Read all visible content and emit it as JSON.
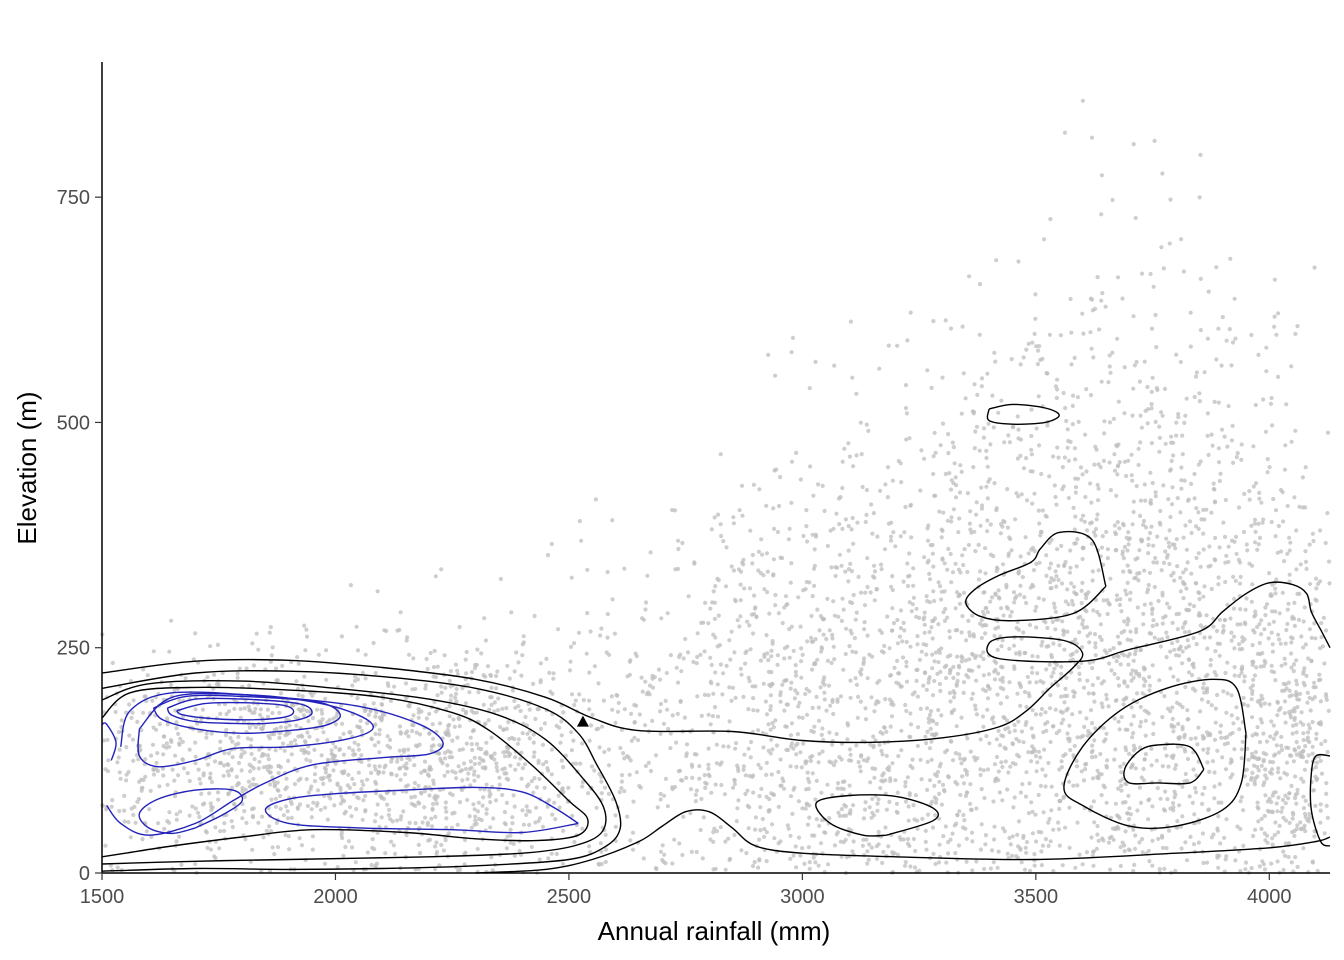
{
  "chart_data": {
    "type": "scatter",
    "title": "",
    "xlabel": "Annual rainfall (mm)",
    "ylabel": "Elevation (m)",
    "xlim": [
      1500,
      4130
    ],
    "ylim": [
      0,
      900
    ],
    "grid": false,
    "legend": "none",
    "x_ticks": [
      1500,
      2000,
      2500,
      3000,
      3500,
      4000
    ],
    "y_ticks": [
      0,
      250,
      500,
      750
    ],
    "x_tick_labels": [
      "1500",
      "2000",
      "2500",
      "3000",
      "3500",
      "4000"
    ],
    "y_tick_labels": [
      "0",
      "250",
      "500",
      "750"
    ],
    "colors": {
      "points": "#bdbdbd",
      "contour_outer": "#000000",
      "contour_inner": "#2222bb",
      "marker": "#000000",
      "axis": "#000000"
    },
    "series": [
      {
        "kind": "points",
        "description_point_clusters": [
          {
            "cx": 1850,
            "cy": 130,
            "sx": 320,
            "sy": 60,
            "n": 1200,
            "ymax": 300
          },
          {
            "cx": 2300,
            "cy": 120,
            "sx": 180,
            "sy": 80,
            "n": 500,
            "ymax": 620
          },
          {
            "cx": 2900,
            "cy": 180,
            "sx": 180,
            "sy": 120,
            "n": 550,
            "ymax": 430
          },
          {
            "cx": 3200,
            "cy": 200,
            "sx": 200,
            "sy": 160,
            "n": 750,
            "ymax": 700
          },
          {
            "cx": 3500,
            "cy": 260,
            "sx": 170,
            "sy": 170,
            "n": 900,
            "ymax": 750
          },
          {
            "cx": 3800,
            "cy": 250,
            "sx": 160,
            "sy": 200,
            "n": 1000,
            "ymax": 900
          },
          {
            "cx": 4050,
            "cy": 160,
            "sx": 70,
            "sy": 110,
            "n": 450,
            "ymax": 520
          }
        ]
      },
      {
        "kind": "marker",
        "shape": "triangle",
        "x": 2530,
        "y": 168
      }
    ],
    "contours": [
      {
        "level": 1,
        "color": "outer",
        "points": [
          [
            1500,
            222
          ],
          [
            1700,
            235
          ],
          [
            1900,
            236
          ],
          [
            2100,
            228
          ],
          [
            2300,
            215
          ],
          [
            2450,
            195
          ],
          [
            2550,
            172
          ],
          [
            2650,
            158
          ],
          [
            2850,
            157
          ],
          [
            3000,
            147
          ],
          [
            3150,
            145
          ],
          [
            3300,
            150
          ],
          [
            3420,
            162
          ],
          [
            3480,
            180
          ],
          [
            3530,
            205
          ],
          [
            3580,
            228
          ],
          [
            3600,
            244
          ],
          [
            3560,
            258
          ],
          [
            3450,
            262
          ],
          [
            3400,
            255
          ],
          [
            3420,
            238
          ],
          [
            3600,
            235
          ],
          [
            3700,
            248
          ],
          [
            3850,
            268
          ],
          [
            3900,
            290
          ],
          [
            3950,
            310
          ],
          [
            4000,
            322
          ],
          [
            4050,
            320
          ],
          [
            4080,
            310
          ],
          [
            4090,
            290
          ],
          [
            4110,
            270
          ],
          [
            4130,
            250
          ]
        ]
      },
      {
        "level": 1,
        "color": "outer",
        "points": [
          [
            4130,
            40
          ],
          [
            4100,
            35
          ],
          [
            4000,
            28
          ],
          [
            3800,
            22
          ],
          [
            3500,
            15
          ],
          [
            3200,
            18
          ],
          [
            3000,
            22
          ],
          [
            2900,
            30
          ],
          [
            2850,
            50
          ],
          [
            2800,
            68
          ],
          [
            2750,
            68
          ],
          [
            2700,
            52
          ],
          [
            2650,
            35
          ],
          [
            2550,
            15
          ],
          [
            2450,
            4
          ],
          [
            2300,
            0
          ]
        ]
      },
      {
        "level": 2,
        "color": "outer",
        "points": [
          [
            1500,
            205
          ],
          [
            1700,
            222
          ],
          [
            1900,
            224
          ],
          [
            2100,
            218
          ],
          [
            2300,
            205
          ],
          [
            2450,
            182
          ],
          [
            2520,
            155
          ],
          [
            2560,
            120
          ],
          [
            2600,
            80
          ],
          [
            2610,
            50
          ],
          [
            2580,
            30
          ],
          [
            2500,
            15
          ],
          [
            2300,
            8
          ],
          [
            2100,
            5
          ],
          [
            1900,
            4
          ],
          [
            1700,
            5
          ],
          [
            1500,
            2
          ]
        ]
      },
      {
        "level": 3,
        "color": "outer",
        "points": [
          [
            1500,
            192
          ],
          [
            1600,
            210
          ],
          [
            1800,
            213
          ],
          [
            2000,
            205
          ],
          [
            2200,
            193
          ],
          [
            2350,
            175
          ],
          [
            2450,
            148
          ],
          [
            2530,
            105
          ],
          [
            2575,
            72
          ],
          [
            2570,
            45
          ],
          [
            2510,
            30
          ],
          [
            2400,
            22
          ],
          [
            2200,
            18
          ],
          [
            1900,
            15
          ],
          [
            1700,
            13
          ],
          [
            1500,
            10
          ]
        ]
      },
      {
        "level": 4,
        "color": "outer",
        "points": [
          [
            1500,
            172
          ],
          [
            1560,
            200
          ],
          [
            1700,
            206
          ],
          [
            1900,
            203
          ],
          [
            2100,
            195
          ],
          [
            2250,
            178
          ],
          [
            2330,
            158
          ],
          [
            2420,
            120
          ],
          [
            2500,
            80
          ],
          [
            2540,
            60
          ],
          [
            2520,
            42
          ],
          [
            2430,
            36
          ],
          [
            2300,
            38
          ],
          [
            2150,
            45
          ],
          [
            1950,
            48
          ],
          [
            1800,
            40
          ],
          [
            1650,
            30
          ],
          [
            1550,
            22
          ],
          [
            1500,
            18
          ]
        ]
      },
      {
        "level": 5,
        "color": "inner",
        "points": [
          [
            1540,
            140
          ],
          [
            1560,
            180
          ],
          [
            1650,
            200
          ],
          [
            1850,
            196
          ],
          [
            2050,
            185
          ],
          [
            2180,
            165
          ],
          [
            2230,
            145
          ],
          [
            2200,
            132
          ],
          [
            2100,
            128
          ],
          [
            1950,
            120
          ],
          [
            1850,
            100
          ],
          [
            1780,
            80
          ],
          [
            1700,
            55
          ],
          [
            1600,
            42
          ],
          [
            1540,
            55
          ],
          [
            1510,
            75
          ]
        ]
      },
      {
        "level": 5,
        "color": "inner",
        "points": [
          [
            2520,
            55
          ],
          [
            2470,
            72
          ],
          [
            2400,
            90
          ],
          [
            2300,
            95
          ],
          [
            2150,
            92
          ],
          [
            2000,
            88
          ],
          [
            1900,
            82
          ],
          [
            1850,
            70
          ],
          [
            1900,
            55
          ],
          [
            2050,
            50
          ],
          [
            2250,
            48
          ],
          [
            2400,
            45
          ],
          [
            2520,
            55
          ]
        ]
      },
      {
        "level": 6,
        "color": "inner",
        "points": [
          [
            1580,
            160
          ],
          [
            1650,
            195
          ],
          [
            1800,
            198
          ],
          [
            1950,
            190
          ],
          [
            2050,
            175
          ],
          [
            2080,
            160
          ],
          [
            2020,
            148
          ],
          [
            1900,
            140
          ],
          [
            1780,
            138
          ],
          [
            1700,
            125
          ],
          [
            1620,
            118
          ],
          [
            1580,
            130
          ],
          [
            1580,
            160
          ]
        ]
      },
      {
        "level": 7,
        "color": "inner",
        "points": [
          [
            1610,
            183
          ],
          [
            1680,
            196
          ],
          [
            1800,
            196
          ],
          [
            1960,
            190
          ],
          [
            2010,
            176
          ],
          [
            1980,
            164
          ],
          [
            1900,
            158
          ],
          [
            1800,
            155
          ],
          [
            1700,
            160
          ],
          [
            1630,
            170
          ],
          [
            1610,
            183
          ]
        ]
      },
      {
        "level": 8,
        "color": "inner",
        "points": [
          [
            1640,
            183
          ],
          [
            1700,
            193
          ],
          [
            1800,
            193
          ],
          [
            1920,
            188
          ],
          [
            1950,
            178
          ],
          [
            1920,
            170
          ],
          [
            1850,
            166
          ],
          [
            1780,
            166
          ],
          [
            1700,
            168
          ],
          [
            1650,
            175
          ],
          [
            1640,
            183
          ]
        ]
      },
      {
        "level": 9,
        "color": "inner",
        "points": [
          [
            1660,
            180
          ],
          [
            1720,
            188
          ],
          [
            1800,
            189
          ],
          [
            1890,
            186
          ],
          [
            1910,
            178
          ],
          [
            1880,
            172
          ],
          [
            1800,
            170
          ],
          [
            1720,
            172
          ],
          [
            1670,
            176
          ],
          [
            1660,
            180
          ]
        ]
      },
      {
        "level": 5,
        "color": "inner",
        "points": [
          [
            1700,
            50
          ],
          [
            1760,
            65
          ],
          [
            1800,
            80
          ],
          [
            1780,
            92
          ],
          [
            1700,
            92
          ],
          [
            1620,
            82
          ],
          [
            1580,
            66
          ],
          [
            1600,
            50
          ],
          [
            1650,
            44
          ],
          [
            1700,
            50
          ]
        ]
      },
      {
        "level": 5,
        "color": "inner",
        "points": [
          [
            1520,
            125
          ],
          [
            1530,
            145
          ],
          [
            1510,
            165
          ],
          [
            1500,
            165
          ]
        ]
      },
      {
        "level": 2,
        "color": "outer",
        "points": [
          [
            3180,
            42
          ],
          [
            3280,
            58
          ],
          [
            3280,
            72
          ],
          [
            3200,
            85
          ],
          [
            3100,
            86
          ],
          [
            3030,
            78
          ],
          [
            3060,
            55
          ],
          [
            3130,
            42
          ],
          [
            3180,
            42
          ]
        ]
      },
      {
        "level": 2,
        "color": "outer",
        "points": [
          [
            3950,
            155
          ],
          [
            3930,
            205
          ],
          [
            3880,
            215
          ],
          [
            3780,
            205
          ],
          [
            3680,
            180
          ],
          [
            3600,
            140
          ],
          [
            3560,
            95
          ],
          [
            3600,
            75
          ],
          [
            3700,
            52
          ],
          [
            3800,
            52
          ],
          [
            3900,
            70
          ],
          [
            3940,
            100
          ],
          [
            3950,
            155
          ]
        ]
      },
      {
        "level": 3,
        "color": "outer",
        "points": [
          [
            3860,
            115
          ],
          [
            3830,
            140
          ],
          [
            3760,
            142
          ],
          [
            3720,
            135
          ],
          [
            3690,
            115
          ],
          [
            3700,
            100
          ],
          [
            3760,
            100
          ],
          [
            3830,
            100
          ],
          [
            3860,
            115
          ]
        ]
      },
      {
        "level": 2,
        "color": "outer",
        "points": [
          [
            3650,
            318
          ],
          [
            3620,
            370
          ],
          [
            3550,
            378
          ],
          [
            3510,
            360
          ],
          [
            3490,
            345
          ],
          [
            3420,
            330
          ],
          [
            3370,
            315
          ],
          [
            3350,
            300
          ],
          [
            3380,
            285
          ],
          [
            3450,
            280
          ],
          [
            3580,
            288
          ],
          [
            3650,
            318
          ]
        ]
      },
      {
        "level": 2,
        "color": "outer",
        "points": [
          [
            3400,
            515
          ],
          [
            3450,
            520
          ],
          [
            3520,
            516
          ],
          [
            3550,
            508
          ],
          [
            3520,
            500
          ],
          [
            3450,
            498
          ],
          [
            3400,
            502
          ],
          [
            3400,
            515
          ]
        ]
      },
      {
        "level": 2,
        "color": "outer",
        "points": [
          [
            4130,
            130
          ],
          [
            4100,
            130
          ],
          [
            4090,
            110
          ],
          [
            4090,
            70
          ],
          [
            4110,
            35
          ],
          [
            4130,
            30
          ]
        ]
      }
    ]
  }
}
